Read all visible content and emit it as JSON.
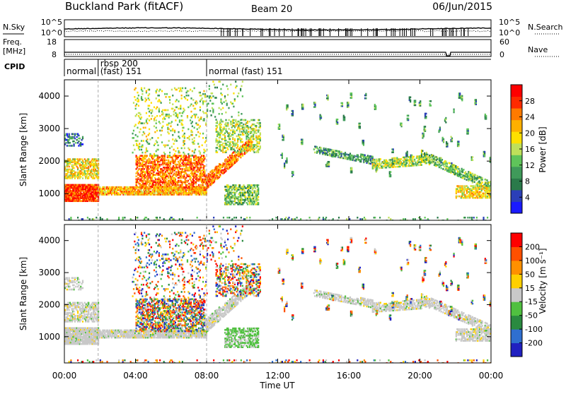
{
  "header": {
    "station": "Buckland Park (fitACF)",
    "beam": "Beam 20",
    "date": "06/Jun/2015"
  },
  "top_panel": {
    "left_label": "N.Sky",
    "right_label": "N.Search",
    "left_ticks": [
      "10^5",
      "10^0"
    ],
    "right_ticks": [
      "10^5",
      "10^0"
    ]
  },
  "freq_panel": {
    "left_label_1": "Freq.",
    "left_label_2": "[MHz]",
    "right_label": "Nave",
    "left_ticks": [
      "18",
      "8"
    ],
    "right_ticks": [
      "60",
      "0"
    ]
  },
  "cpid": {
    "label": "CPID",
    "segments": [
      {
        "start_h": 0.0,
        "end_h": 1.9,
        "lines": [
          "normal"
        ]
      },
      {
        "start_h": 1.9,
        "end_h": 8.0,
        "lines": [
          "rbsp 200",
          "(fast) 151"
        ]
      },
      {
        "start_h": 8.0,
        "end_h": 24.0,
        "lines": [
          "normal (fast)  151"
        ]
      }
    ]
  },
  "chart_data": [
    {
      "type": "heatmap",
      "name": "power",
      "ylabel": "Slant Range [km]",
      "x_ticks": [
        "00:00",
        "04:00",
        "08:00",
        "12:00",
        "16:00",
        "20:00",
        "00:00"
      ],
      "x_range_hours": [
        0,
        24
      ],
      "y_range_km": [
        180,
        4500
      ],
      "y_ticks": [
        1000,
        2000,
        3000,
        4000
      ],
      "colorbar": {
        "label": "Power [dB]",
        "ticks": [
          4,
          8,
          12,
          16,
          20,
          24,
          28
        ],
        "colors": [
          "#1a1aff",
          "#2b3fb8",
          "#2a7a4a",
          "#3f9a5a",
          "#5fc45a",
          "#bfe05a",
          "#ffe000",
          "#ffb000",
          "#ff7a00",
          "#ff2a00",
          "#ff0000"
        ]
      }
    },
    {
      "type": "heatmap",
      "name": "velocity",
      "ylabel": "Slant Range [km]",
      "x_ticks": [
        "00:00",
        "04:00",
        "08:00",
        "12:00",
        "16:00",
        "20:00",
        "00:00"
      ],
      "xlabel": "Time UT",
      "x_range_hours": [
        0,
        24
      ],
      "y_range_km": [
        180,
        4500
      ],
      "y_ticks": [
        1000,
        2000,
        3000,
        4000
      ],
      "colorbar": {
        "label": "Velocity [m s⁻¹]",
        "ticks": [
          "200",
          "100",
          "50",
          "15",
          "-15",
          "-50",
          "-100",
          "-200"
        ],
        "colors": [
          "#2020c0",
          "#2f6fd0",
          "#2a8a40",
          "#50c040",
          "#c8c8c8",
          "#ffd000",
          "#ff9000",
          "#ff5000",
          "#ff0000"
        ]
      }
    }
  ]
}
